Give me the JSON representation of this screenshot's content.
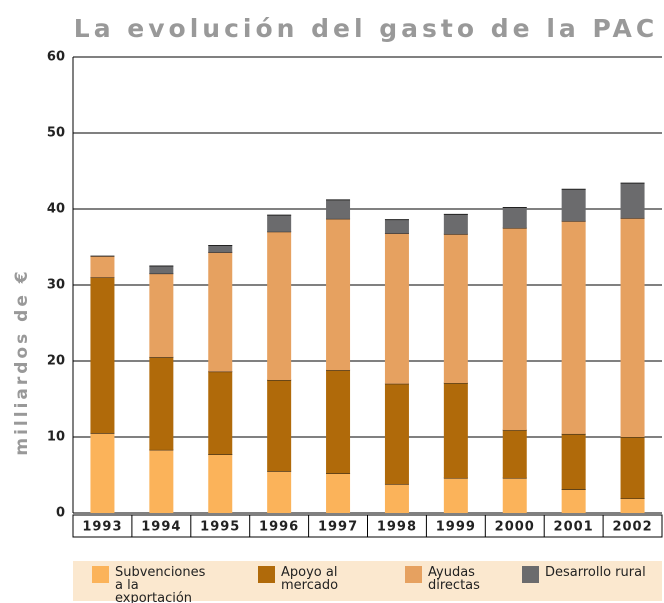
{
  "chart_data": {
    "type": "bar",
    "stacked": true,
    "title": "La evolución del gasto de la PAC",
    "y_label": "milliardos de €",
    "categories": [
      "1993",
      "1994",
      "1995",
      "1996",
      "1997",
      "1998",
      "1999",
      "2000",
      "2001",
      "2002"
    ],
    "series": [
      {
        "name": "Subvenciones a la exportación",
        "color": "#fbb35a",
        "values": [
          10.5,
          8.3,
          7.7,
          5.5,
          5.2,
          3.8,
          4.6,
          4.6,
          3.1,
          1.9
        ]
      },
      {
        "name": "Apoyo al mercado",
        "color": "#b06a0a",
        "values": [
          20.5,
          12.2,
          10.9,
          12,
          13.6,
          13.2,
          12.5,
          6.3,
          7.3,
          8.1
        ]
      },
      {
        "name": "Ayudas directas",
        "color": "#e6a160",
        "values": [
          2.8,
          11,
          15.7,
          19.5,
          19.9,
          19.8,
          19.6,
          26.6,
          28,
          28.8
        ]
      },
      {
        "name": "Desarrollo rural",
        "color": "#6b6b6d",
        "values": [
          0,
          1,
          0.9,
          2.2,
          2.5,
          1.8,
          2.6,
          2.7,
          4.2,
          4.6
        ]
      }
    ],
    "ylim": [
      0,
      60
    ],
    "yticks": [
      0,
      10,
      20,
      30,
      40,
      50,
      60
    ],
    "grid": true
  }
}
